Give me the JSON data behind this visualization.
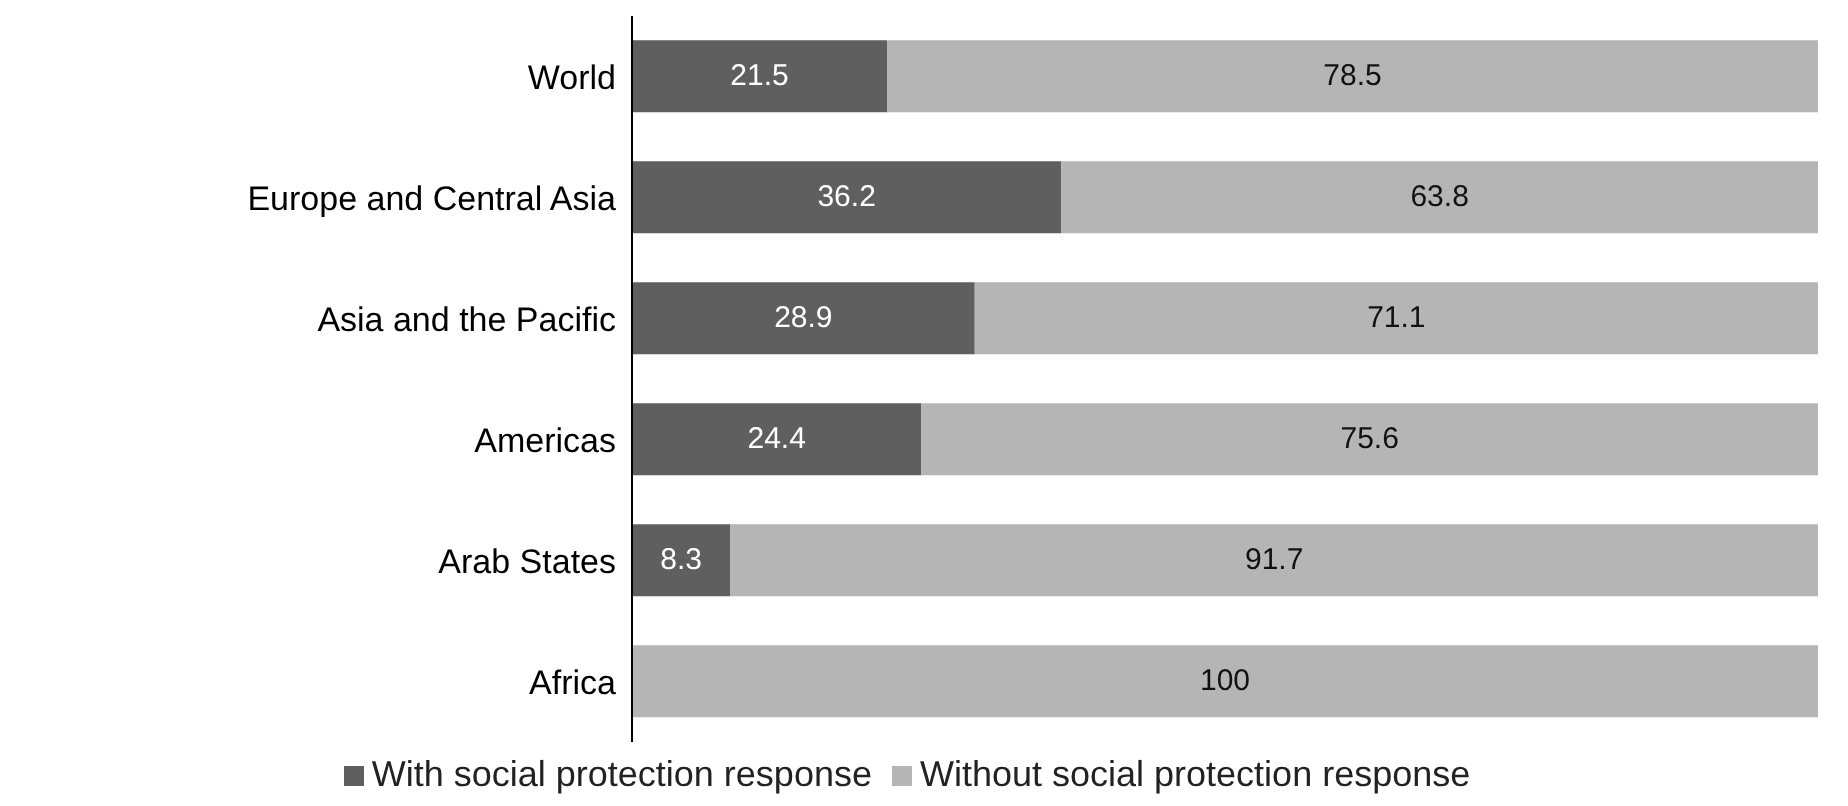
{
  "chart_data": {
    "type": "bar",
    "orientation": "horizontal",
    "stacked": true,
    "categories": [
      "World",
      "Europe and Central Asia",
      "Asia and the Pacific",
      "Americas",
      "Arab States",
      "Africa"
    ],
    "series": [
      {
        "name": "With social protection response",
        "color": "#5f5f5f",
        "values": [
          21.5,
          36.2,
          28.9,
          24.4,
          8.3,
          0
        ],
        "value_labels": [
          "21.5",
          "36.2",
          "28.9",
          "24.4",
          "8.3",
          null
        ]
      },
      {
        "name": "Without social protection response",
        "color": "#b5b5b5",
        "values": [
          78.5,
          63.8,
          71.1,
          75.6,
          91.7,
          100
        ],
        "value_labels": [
          "78.5",
          "63.8",
          "71.1",
          "75.6",
          "91.7",
          "100"
        ]
      }
    ],
    "xlim": [
      0,
      100
    ],
    "tick_labels": "y",
    "legend": "bottom"
  }
}
